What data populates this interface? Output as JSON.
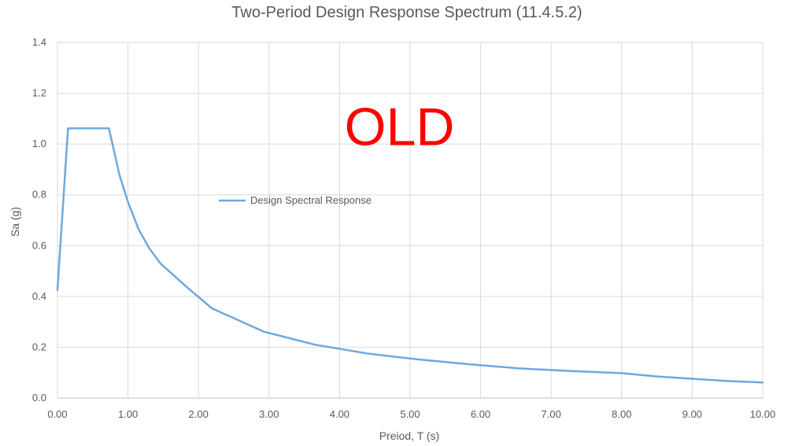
{
  "chart_data": {
    "type": "line",
    "title": "Two-Period Design Response Spectrum (11.4.5.2)",
    "xlabel": "Preiod, T (s)",
    "ylabel": "Sa (g)",
    "xlim": [
      0,
      10
    ],
    "ylim": [
      0,
      1.4
    ],
    "xticks": [
      0,
      1,
      2,
      3,
      4,
      5,
      6,
      7,
      8,
      9,
      10
    ],
    "xtick_labels": [
      "0.00",
      "1.00",
      "2.00",
      "3.00",
      "4.00",
      "5.00",
      "6.00",
      "7.00",
      "8.00",
      "9.00",
      "10.00"
    ],
    "yticks": [
      0,
      0.2,
      0.4,
      0.6,
      0.8,
      1.0,
      1.2,
      1.4
    ],
    "ytick_labels": [
      "0.0",
      "0.2",
      "0.4",
      "0.6",
      "0.8",
      "1.0",
      "1.2",
      "1.4"
    ],
    "grid": true,
    "legend_position": "center-left",
    "series": [
      {
        "name": "Design Spectral Response",
        "color": "#6FA8DC",
        "x": [
          0.0,
          0.15,
          0.73,
          0.88,
          1.0,
          1.15,
          1.3,
          1.46,
          1.8,
          2.19,
          2.92,
          3.65,
          4.38,
          5.11,
          5.84,
          6.57,
          7.3,
          8.0,
          8.5,
          9.0,
          9.5,
          10.0
        ],
        "y": [
          0.425,
          1.062,
          1.062,
          0.878,
          0.772,
          0.665,
          0.59,
          0.53,
          0.445,
          0.353,
          0.262,
          0.21,
          0.176,
          0.152,
          0.133,
          0.116,
          0.106,
          0.098,
          0.085,
          0.076,
          0.067,
          0.061
        ]
      }
    ],
    "annotation": {
      "text": "OLD",
      "color": "#FF0000",
      "at_x": 4.85,
      "at_y": 1.07
    }
  }
}
